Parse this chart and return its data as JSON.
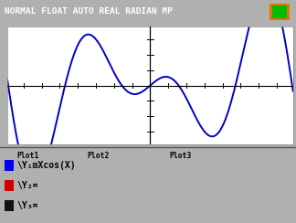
{
  "title_text": "NORMAL FLOAT AUTO REAL RADIAN MP",
  "title_bg": "#2a2a2a",
  "title_color": "#ffffff",
  "outer_bg": "#b0b0b0",
  "plot_bg": "#e8e8e8",
  "inner_plot_bg": "#ffffff",
  "curve_color": "#0000cc",
  "x_min": -7.9,
  "x_max": 7.9,
  "y_min": -3.8,
  "y_max": 3.8,
  "bottom_bg": "#ffffff",
  "plot_labels": [
    "Plot1",
    "Plot2",
    "Plot3"
  ],
  "y_label_1": "\\Y₁⊠Xcos(X)",
  "y_label_2": "\\Y₂=",
  "y_label_3": "\\Y₃=",
  "y_colors": [
    "#0000ee",
    "#cc0000",
    "#111111"
  ],
  "battery_outer": "#dd7700",
  "battery_inner": "#00bb00",
  "separator_color": "#555555"
}
